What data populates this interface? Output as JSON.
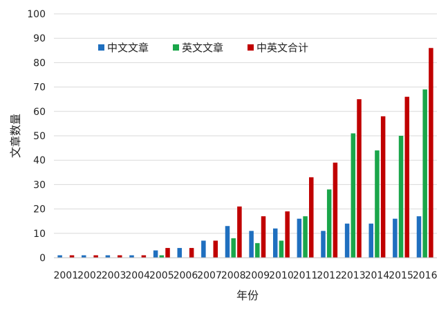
{
  "chart_data": {
    "type": "bar",
    "title": "",
    "xlabel": "年份",
    "ylabel": "文章数量",
    "ylim": [
      0,
      100
    ],
    "yticks": [
      0,
      10,
      20,
      30,
      40,
      50,
      60,
      70,
      80,
      90,
      100
    ],
    "grid": true,
    "legend_position": "top-left",
    "categories": [
      "2001",
      "2002",
      "2003",
      "2004",
      "2005",
      "2006",
      "2007",
      "2008",
      "2009",
      "2010",
      "2011",
      "2012",
      "2013",
      "2014",
      "2015",
      "2016"
    ],
    "series": [
      {
        "name": "中文文章",
        "color": "#1f6fbf",
        "values": [
          1,
          1,
          1,
          1,
          3,
          4,
          7,
          13,
          11,
          12,
          16,
          11,
          14,
          14,
          16,
          17
        ]
      },
      {
        "name": "英文文章",
        "color": "#1aa64a",
        "values": [
          0,
          0,
          0,
          0,
          1,
          0,
          0,
          8,
          6,
          7,
          17,
          28,
          51,
          44,
          50,
          69
        ]
      },
      {
        "name": "中英文合计",
        "color": "#c00000",
        "values": [
          1,
          1,
          1,
          1,
          4,
          4,
          7,
          21,
          17,
          19,
          33,
          39,
          65,
          58,
          66,
          86
        ]
      }
    ]
  }
}
